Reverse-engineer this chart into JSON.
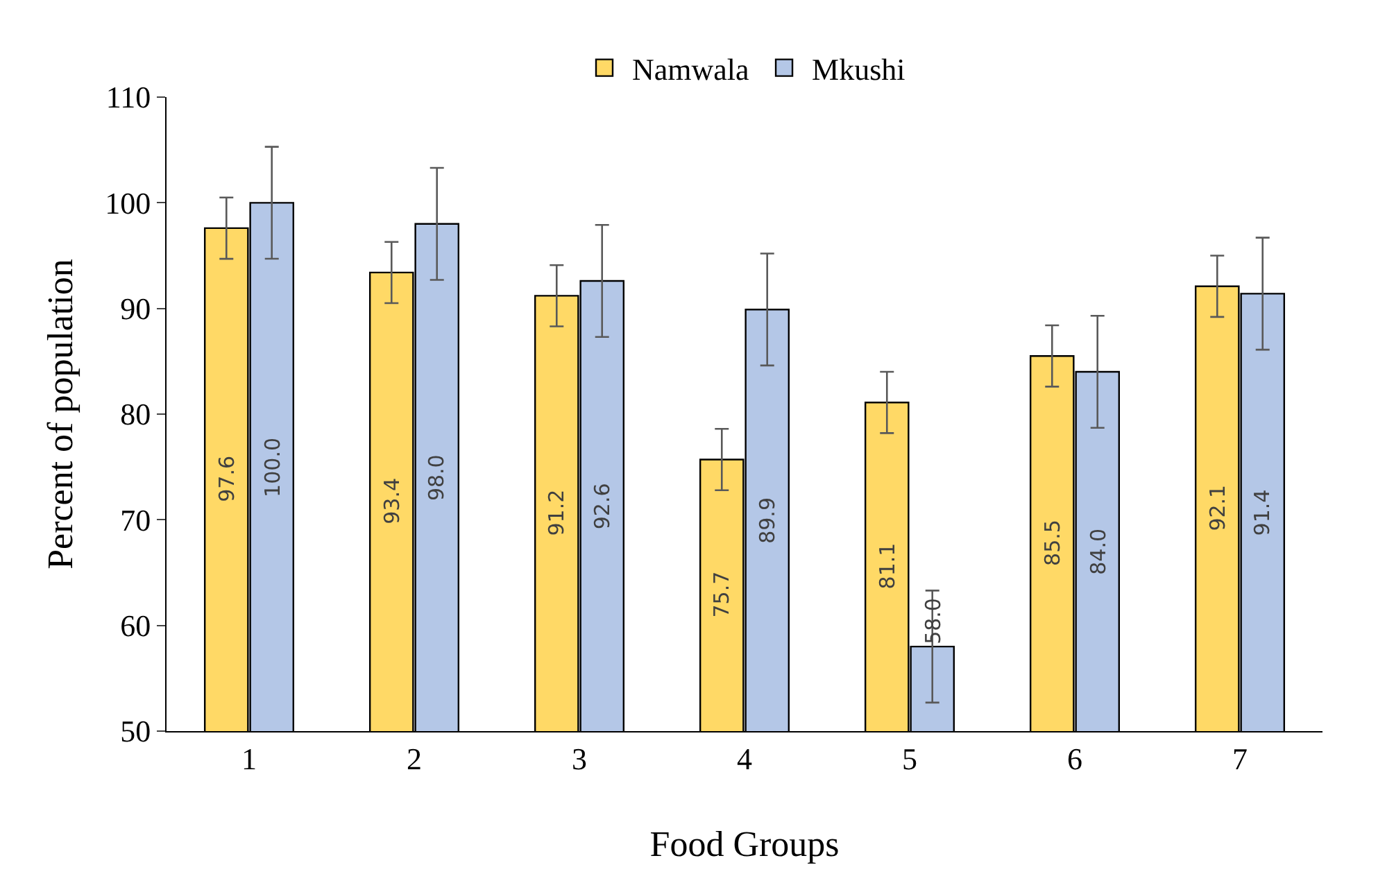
{
  "chart_data": {
    "type": "bar",
    "xlabel": "Food Groups",
    "ylabel": "Percent of population",
    "categories": [
      "1",
      "2",
      "3",
      "4",
      "5",
      "6",
      "7"
    ],
    "series": [
      {
        "name": "Namwala",
        "color": "#ffd966",
        "values": [
          97.6,
          93.4,
          91.2,
          75.7,
          81.1,
          85.5,
          92.1
        ],
        "value_labels": [
          "97.6",
          "93.4",
          "91.2",
          "75.7",
          "81.1",
          "85.5",
          "92.1"
        ],
        "errors": [
          2.9,
          2.9,
          2.9,
          2.9,
          2.9,
          2.9,
          2.9
        ]
      },
      {
        "name": "Mkushi",
        "color": "#b4c7e7",
        "values": [
          100.0,
          98.0,
          92.6,
          89.9,
          58.0,
          84.0,
          91.4
        ],
        "value_labels": [
          "100.0",
          "98.0",
          "92.6",
          "89.9",
          "58.0",
          "84.0",
          "91.4"
        ],
        "errors": [
          5.3,
          5.3,
          5.3,
          5.3,
          5.3,
          5.3,
          5.3
        ]
      }
    ],
    "ylim": [
      50,
      110
    ],
    "yticks": [
      50,
      60,
      70,
      80,
      90,
      100,
      110
    ],
    "legend": "top"
  }
}
